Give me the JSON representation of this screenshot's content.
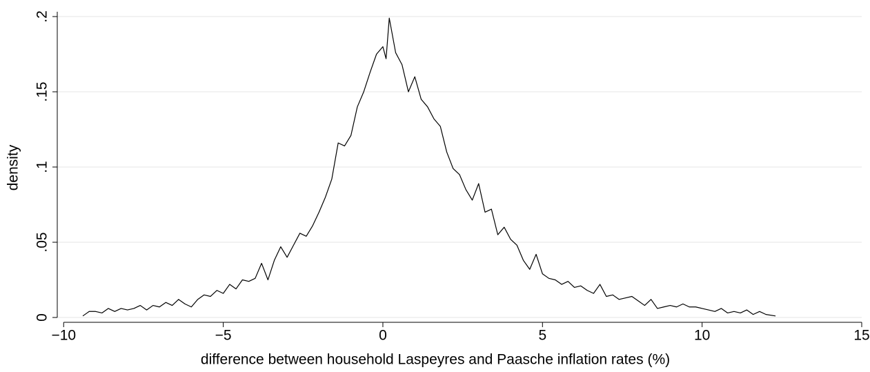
{
  "chart_data": {
    "type": "line",
    "ylabel": "density",
    "xlabel": "difference between household Laspeyres and Paasche inflation rates (%)",
    "color": "#000000",
    "grid": true,
    "xlim": [
      -10.2,
      15
    ],
    "ylim": [
      0,
      0.2
    ],
    "xticks": [
      {
        "value": -10,
        "label": "−10"
      },
      {
        "value": -5,
        "label": "−5"
      },
      0,
      5,
      10,
      15
    ],
    "yticks": [
      0,
      {
        "value": 0.05,
        "label": ".05"
      },
      {
        "value": 0.1,
        "label": ".1"
      },
      {
        "value": 0.15,
        "label": ".15"
      },
      {
        "value": 0.2,
        "label": ".2"
      }
    ],
    "x": [
      -9.4,
      -9.2,
      -9.0,
      -8.8,
      -8.6,
      -8.4,
      -8.2,
      -8.0,
      -7.8,
      -7.6,
      -7.4,
      -7.2,
      -7.0,
      -6.8,
      -6.6,
      -6.4,
      -6.2,
      -6.0,
      -5.8,
      -5.6,
      -5.4,
      -5.2,
      -5.0,
      -4.8,
      -4.6,
      -4.4,
      -4.2,
      -4.0,
      -3.8,
      -3.6,
      -3.4,
      -3.2,
      -3.0,
      -2.8,
      -2.6,
      -2.4,
      -2.2,
      -2.0,
      -1.8,
      -1.6,
      -1.4,
      -1.2,
      -1.0,
      -0.8,
      -0.6,
      -0.4,
      -0.2,
      0.0,
      0.1,
      0.2,
      0.4,
      0.6,
      0.8,
      1.0,
      1.2,
      1.4,
      1.6,
      1.8,
      2.0,
      2.2,
      2.4,
      2.6,
      2.8,
      3.0,
      3.2,
      3.4,
      3.6,
      3.8,
      4.0,
      4.2,
      4.4,
      4.6,
      4.8,
      5.0,
      5.2,
      5.4,
      5.6,
      5.8,
      6.0,
      6.2,
      6.4,
      6.6,
      6.8,
      7.0,
      7.2,
      7.4,
      7.6,
      7.8,
      8.0,
      8.2,
      8.4,
      8.6,
      8.8,
      9.0,
      9.2,
      9.4,
      9.6,
      9.8,
      10.0,
      10.2,
      10.4,
      10.6,
      10.8,
      11.0,
      11.2,
      11.4,
      11.6,
      11.8,
      12.0,
      12.3
    ],
    "values": [
      0.001,
      0.004,
      0.004,
      0.003,
      0.006,
      0.004,
      0.006,
      0.005,
      0.006,
      0.008,
      0.005,
      0.008,
      0.007,
      0.01,
      0.008,
      0.012,
      0.009,
      0.007,
      0.012,
      0.015,
      0.014,
      0.018,
      0.016,
      0.022,
      0.019,
      0.025,
      0.024,
      0.026,
      0.036,
      0.025,
      0.038,
      0.047,
      0.04,
      0.048,
      0.056,
      0.054,
      0.061,
      0.07,
      0.08,
      0.092,
      0.116,
      0.114,
      0.121,
      0.14,
      0.15,
      0.163,
      0.175,
      0.18,
      0.172,
      0.199,
      0.176,
      0.168,
      0.15,
      0.16,
      0.145,
      0.14,
      0.132,
      0.127,
      0.11,
      0.099,
      0.095,
      0.085,
      0.078,
      0.089,
      0.07,
      0.072,
      0.055,
      0.06,
      0.052,
      0.048,
      0.038,
      0.032,
      0.042,
      0.029,
      0.026,
      0.025,
      0.022,
      0.024,
      0.02,
      0.021,
      0.018,
      0.016,
      0.022,
      0.014,
      0.015,
      0.012,
      0.013,
      0.014,
      0.011,
      0.008,
      0.012,
      0.006,
      0.007,
      0.008,
      0.007,
      0.009,
      0.007,
      0.007,
      0.006,
      0.005,
      0.004,
      0.006,
      0.003,
      0.004,
      0.003,
      0.005,
      0.002,
      0.004,
      0.002,
      0.001
    ]
  }
}
